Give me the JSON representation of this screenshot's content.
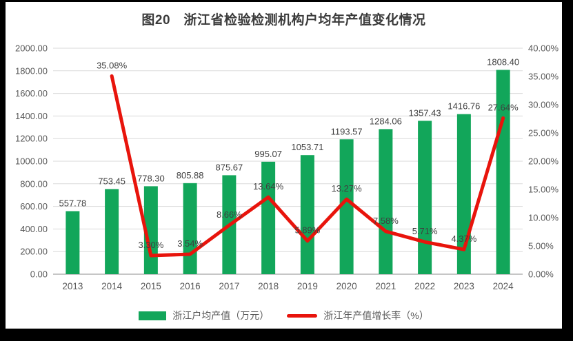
{
  "title": "图20　浙江省检验检测机构户均年产值变化情况",
  "legend": {
    "bar_label": "浙江户均产值（万元）",
    "line_label": "浙江年产值增长率（%）"
  },
  "colors": {
    "bar": "#12A65A",
    "line": "#E8140C",
    "grid": "#D9D9D9",
    "axis_line": "#C6C6C6",
    "tick_text": "#595959",
    "label_text": "#3F3F3F",
    "title_text": "#3B3B3B",
    "frame": "#000000",
    "panel": "#FFFFFF"
  },
  "chart_data": {
    "type": "combo",
    "title": "图20　浙江省检验检测机构户均年产值变化情况",
    "categories": [
      "2013",
      "2014",
      "2015",
      "2016",
      "2017",
      "2018",
      "2019",
      "2020",
      "2021",
      "2022",
      "2023",
      "2024"
    ],
    "series": [
      {
        "name": "浙江户均产值（万元）",
        "type": "bar",
        "axis": "left",
        "color": "#12A65A",
        "values": [
          557.78,
          753.45,
          778.3,
          805.88,
          875.67,
          995.07,
          1053.71,
          1193.57,
          1284.06,
          1357.43,
          1416.76,
          1808.4
        ]
      },
      {
        "name": "浙江年产值增长率（%）",
        "type": "line",
        "axis": "right",
        "color": "#E8140C",
        "values": [
          null,
          35.08,
          3.3,
          3.54,
          8.66,
          13.64,
          5.89,
          13.27,
          7.58,
          5.71,
          4.37,
          27.64
        ]
      }
    ],
    "left_axis": {
      "min": 0,
      "max": 2000,
      "step": 200,
      "tick_decimals": 2,
      "tick_suffix": ""
    },
    "right_axis": {
      "min": 0,
      "max": 40,
      "step": 5,
      "tick_decimals": 2,
      "tick_suffix": "%"
    },
    "grid": true,
    "data_labels": true,
    "legend_position": "bottom"
  }
}
